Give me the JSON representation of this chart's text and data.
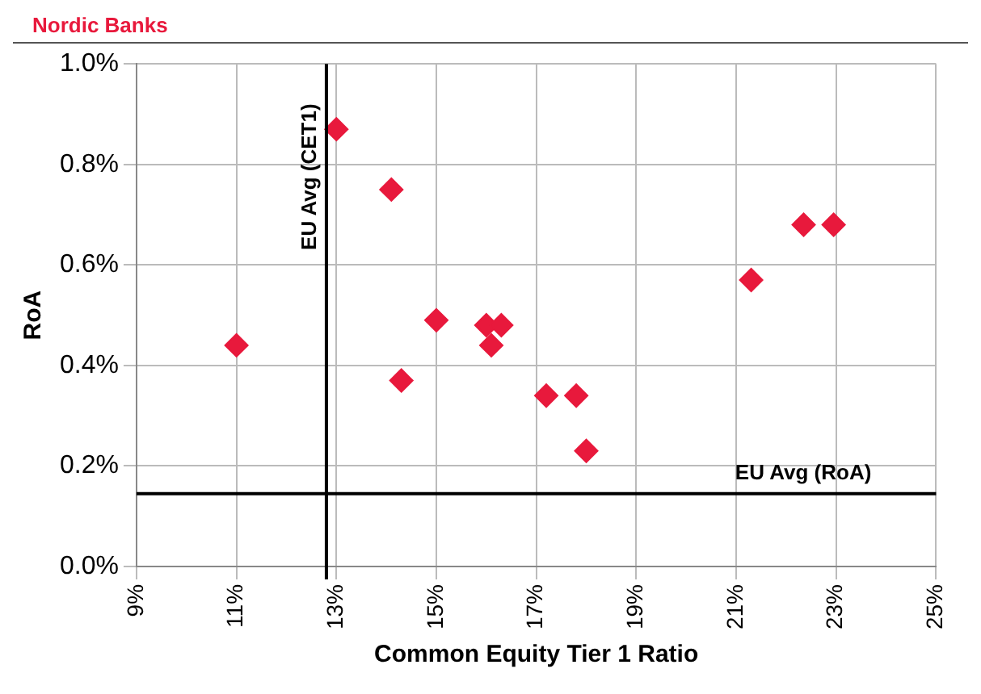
{
  "chart_data": {
    "type": "scatter",
    "title": "Nordic Banks",
    "xlabel": "Common Equity Tier 1 Ratio",
    "ylabel": "RoA",
    "x": [
      11.0,
      13.0,
      14.1,
      14.3,
      15.0,
      16.0,
      16.3,
      16.1,
      17.2,
      17.8,
      18.0,
      21.3,
      22.35,
      22.95
    ],
    "series": [
      {
        "color": "#e8193c",
        "values": [
          0.44,
          0.87,
          0.75,
          0.37,
          0.49,
          0.48,
          0.48,
          0.44,
          0.34,
          0.34,
          0.23,
          0.57,
          0.68,
          0.68
        ]
      }
    ],
    "xlim": [
      9,
      25
    ],
    "ylim": [
      0,
      1
    ],
    "xticks": [
      {
        "value": 9,
        "label": "9%"
      },
      {
        "value": 11,
        "label": "11%"
      },
      {
        "value": 13,
        "label": "13%"
      },
      {
        "value": 15,
        "label": "15%"
      },
      {
        "value": 17,
        "label": "17%"
      },
      {
        "value": 19,
        "label": "19%"
      },
      {
        "value": 21,
        "label": "21%"
      },
      {
        "value": 23,
        "label": "23%"
      },
      {
        "value": 25,
        "label": "25%"
      }
    ],
    "yticks": [
      {
        "value": 0,
        "label": "0.0%"
      },
      {
        "value": 0.2,
        "label": "0.2%"
      },
      {
        "value": 0.4,
        "label": "0.4%"
      },
      {
        "value": 0.6,
        "label": "0.6%"
      },
      {
        "value": 0.8,
        "label": "0.8%"
      },
      {
        "value": 1,
        "label": "1.0%"
      }
    ],
    "ref_lines": [
      {
        "axis": "x",
        "value": 12.8,
        "label": "EU Avg (CET1)"
      },
      {
        "axis": "y",
        "value": 0.145,
        "label": "EU Avg (RoA)"
      }
    ],
    "grid": true,
    "marker": "diamond",
    "legend": false
  }
}
